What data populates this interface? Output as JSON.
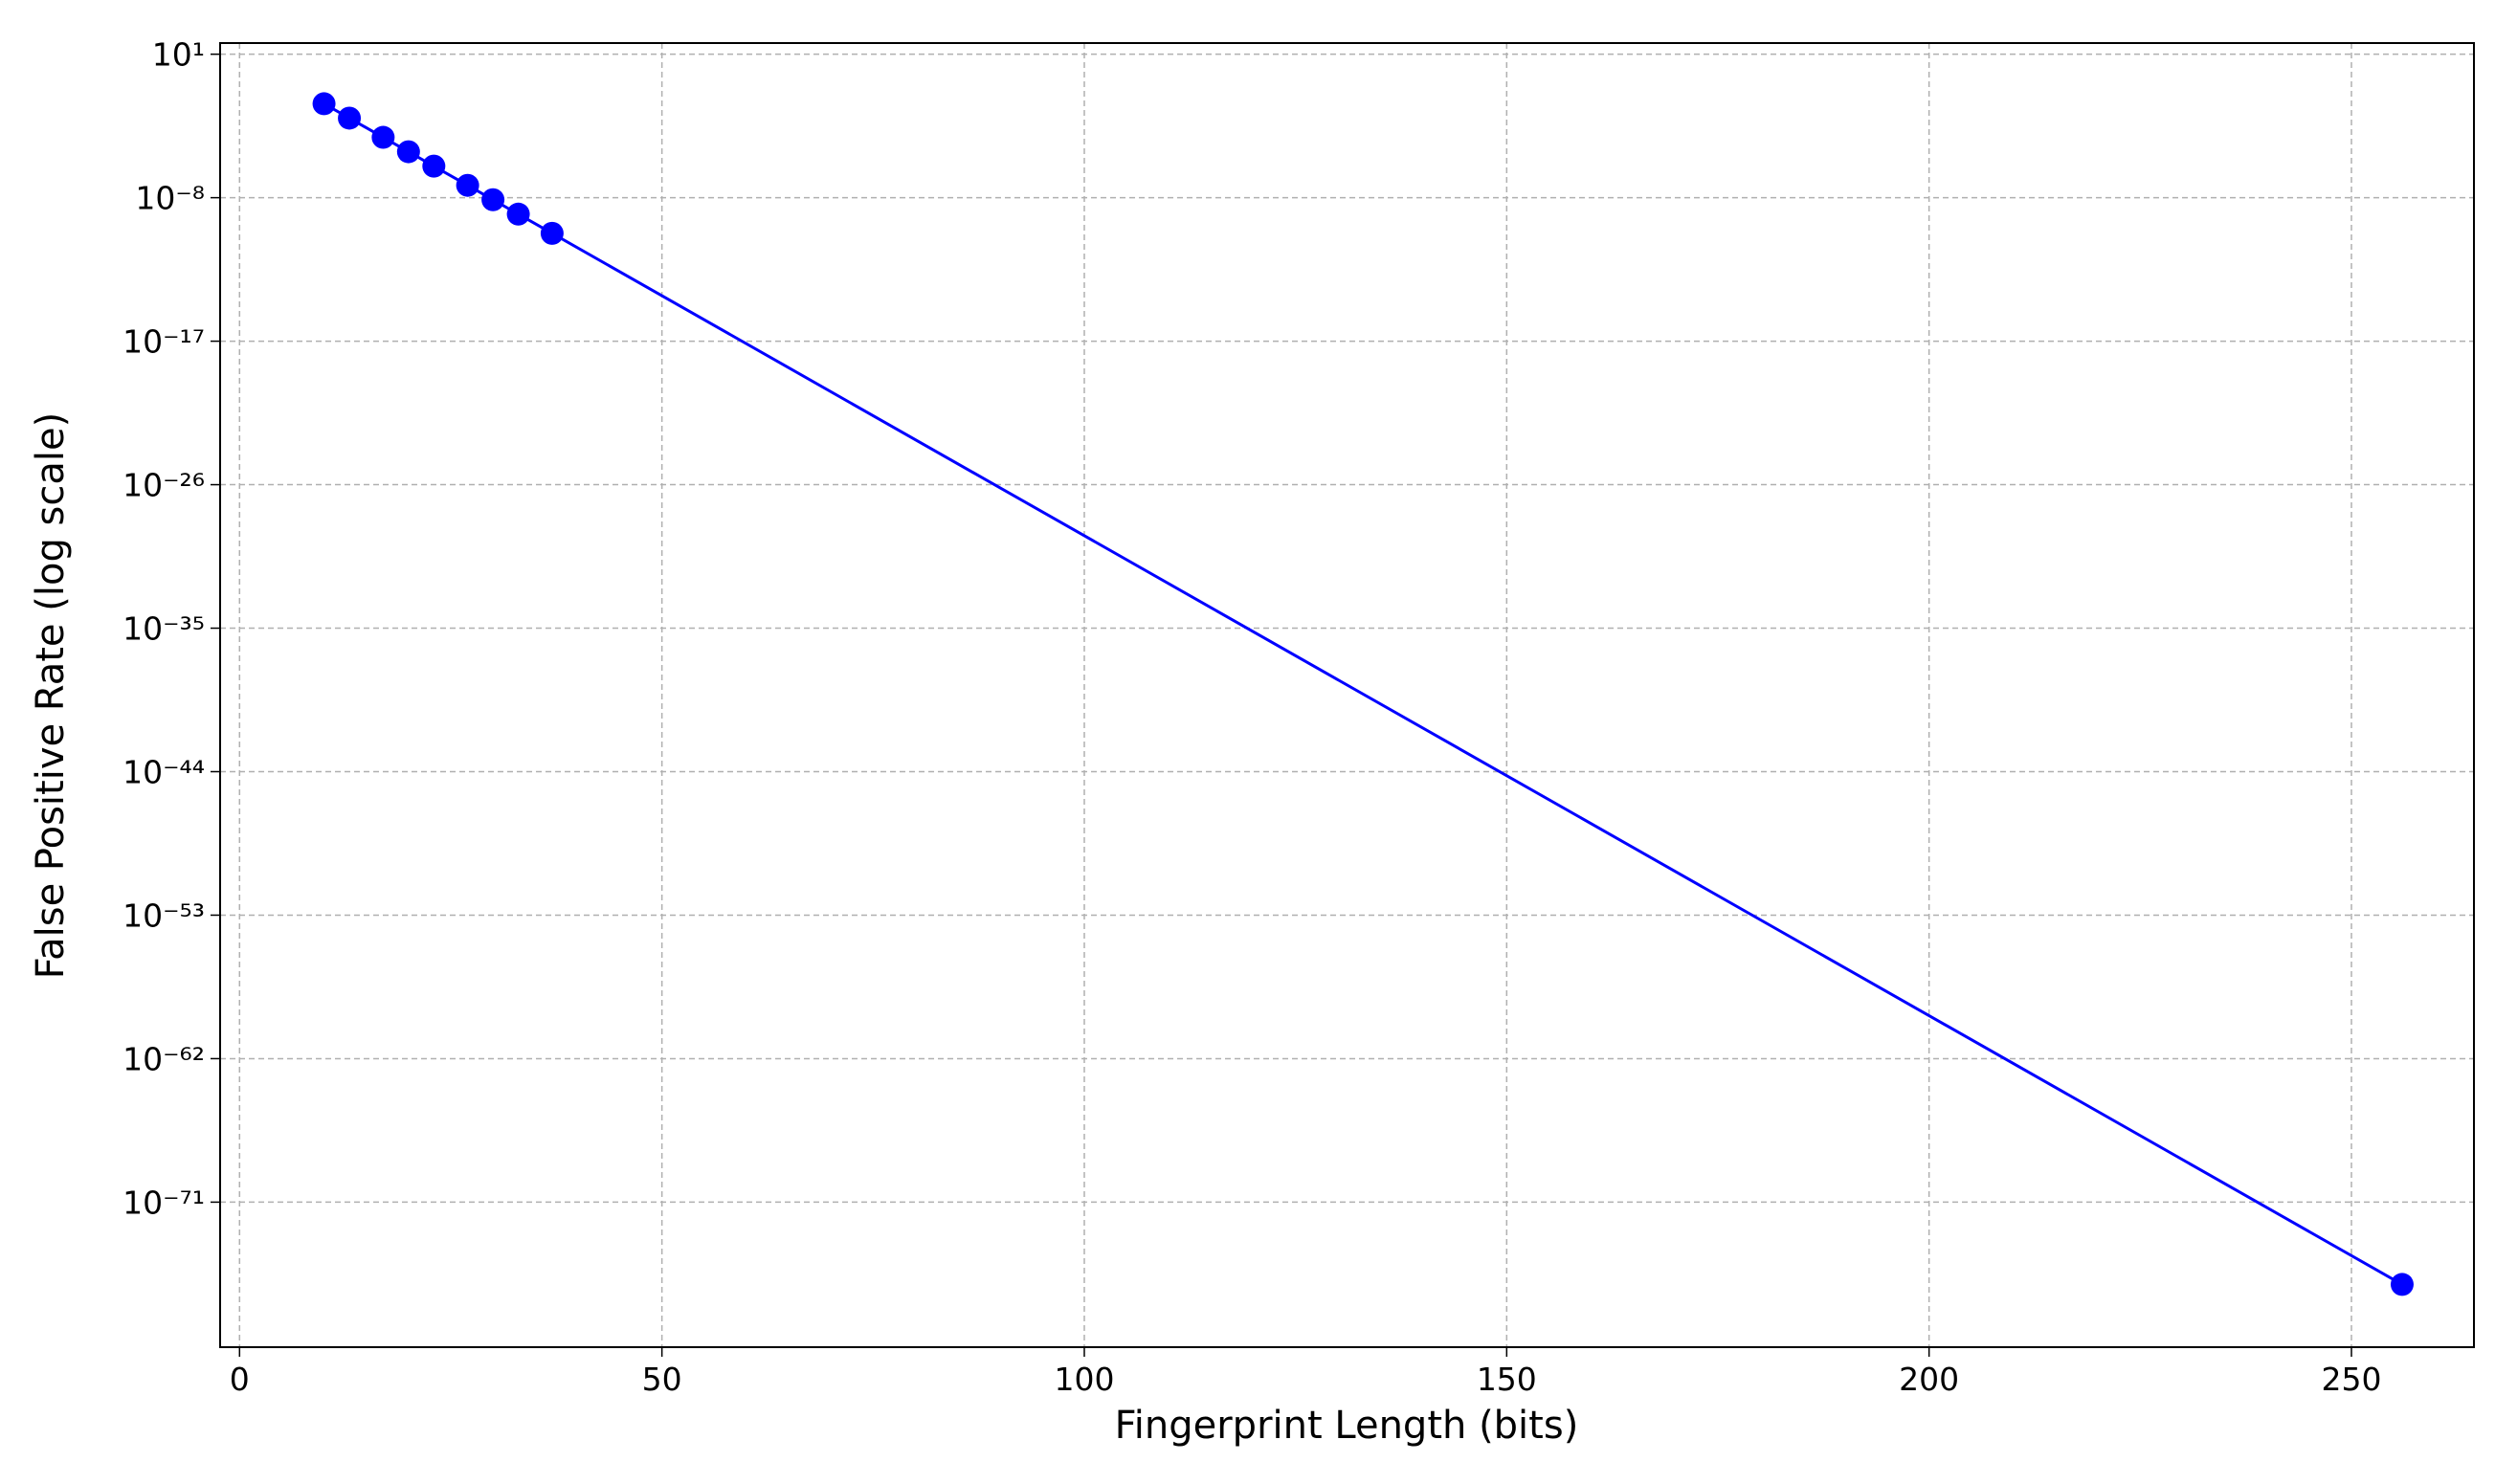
{
  "chart_data": {
    "type": "line",
    "xlabel": "Fingerprint Length (bits)",
    "ylabel": "False Positive Rate (log scale)",
    "x": [
      10,
      13,
      17,
      20,
      23,
      27,
      30,
      33,
      37,
      256
    ],
    "series": [
      {
        "color": "#0000ff",
        "values": [
          0.0078125,
          0.0009765625,
          6.103515625e-05,
          7.62939453125e-06,
          9.5367431640625e-07,
          5.960464477539063e-08,
          7.450580596923828e-09,
          9.313225746154785e-10,
          5.820766091346741e-11,
          6.9089e-77
        ]
      }
    ],
    "xlim": [
      -2.3,
      264.5
    ],
    "xticks": [
      0,
      50,
      100,
      150,
      200,
      250
    ],
    "ylim": [
      8e-81,
      50
    ],
    "ylog": true,
    "yticks": [
      {
        "value": 10.0,
        "label": "10¹"
      },
      {
        "value": 1e-08,
        "label": "10⁻⁸"
      },
      {
        "value": 1e-17,
        "label": "10⁻¹⁷"
      },
      {
        "value": 1e-26,
        "label": "10⁻²⁶"
      },
      {
        "value": 1e-35,
        "label": "10⁻³⁵"
      },
      {
        "value": 1e-44,
        "label": "10⁻⁴⁴"
      },
      {
        "value": 1e-53,
        "label": "10⁻⁵³"
      },
      {
        "value": 1e-62,
        "label": "10⁻⁶²"
      },
      {
        "value": 1e-71,
        "label": "10⁻⁷¹"
      }
    ],
    "grid": true
  }
}
